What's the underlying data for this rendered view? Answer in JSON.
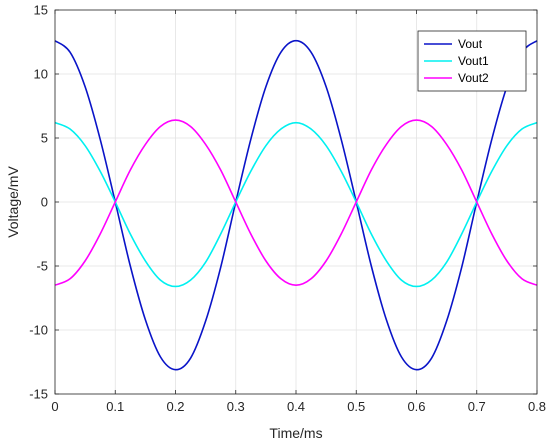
{
  "chart_data": {
    "type": "line",
    "title": "",
    "xlabel": "Time/ms",
    "ylabel": "Voltage/mV",
    "xlim": [
      0,
      0.8
    ],
    "ylim": [
      -15,
      15
    ],
    "xticks": [
      0,
      0.1,
      0.2,
      0.3,
      0.4,
      0.5,
      0.6,
      0.7,
      0.8
    ],
    "yticks": [
      -15,
      -10,
      -5,
      0,
      5,
      10,
      15
    ],
    "grid": true,
    "legend_position": "top-right",
    "x": [
      0,
      0.025,
      0.05,
      0.075,
      0.1,
      0.125,
      0.15,
      0.175,
      0.2,
      0.225,
      0.25,
      0.275,
      0.3,
      0.325,
      0.35,
      0.375,
      0.4,
      0.425,
      0.45,
      0.475,
      0.5,
      0.525,
      0.55,
      0.575,
      0.6,
      0.625,
      0.65,
      0.675,
      0.7,
      0.725,
      0.75,
      0.775,
      0.8
    ],
    "series": [
      {
        "name": "Vout",
        "color": "#0a14c8",
        "values": [
          12.6,
          11.7,
          9.0,
          4.9,
          0.0,
          -5.0,
          -9.2,
          -12.1,
          -13.1,
          -12.2,
          -9.3,
          -5.1,
          0.0,
          4.9,
          9.0,
          11.7,
          12.6,
          11.7,
          9.0,
          4.9,
          0.0,
          -5.0,
          -9.2,
          -12.1,
          -13.1,
          -12.2,
          -9.3,
          -5.1,
          0.0,
          4.9,
          9.0,
          11.7,
          12.6
        ]
      },
      {
        "name": "Vout1",
        "color": "#00f0f0",
        "values": [
          6.2,
          5.7,
          4.4,
          2.4,
          0.0,
          -2.5,
          -4.6,
          -6.1,
          -6.6,
          -6.1,
          -4.7,
          -2.5,
          0.0,
          2.4,
          4.4,
          5.7,
          6.2,
          5.7,
          4.4,
          2.4,
          0.0,
          -2.5,
          -4.6,
          -6.1,
          -6.6,
          -6.1,
          -4.7,
          -2.5,
          0.0,
          2.4,
          4.4,
          5.7,
          6.2
        ]
      },
      {
        "name": "Vout2",
        "color": "#ff00ff",
        "values": [
          -6.5,
          -6.0,
          -4.6,
          -2.5,
          0.0,
          2.5,
          4.5,
          5.9,
          6.4,
          5.9,
          4.5,
          2.5,
          0.0,
          -2.5,
          -4.6,
          -6.0,
          -6.5,
          -6.0,
          -4.6,
          -2.5,
          0.0,
          2.5,
          4.5,
          5.9,
          6.4,
          5.9,
          4.5,
          2.5,
          0.0,
          -2.5,
          -4.6,
          -6.0,
          -6.5
        ]
      }
    ]
  }
}
